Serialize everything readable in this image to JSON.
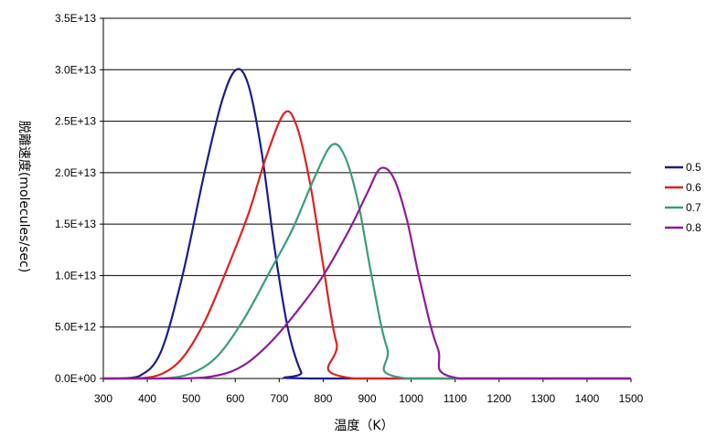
{
  "chart_data": {
    "type": "line",
    "title": "",
    "xlabel": "温度（K）",
    "ylabel": "脱離速度(molecules/sec)",
    "xlim": [
      300,
      1500
    ],
    "ylim": [
      0,
      35000000000000.0
    ],
    "x_ticks": [
      300,
      400,
      500,
      600,
      700,
      800,
      900,
      1000,
      1100,
      1200,
      1300,
      1400,
      1500
    ],
    "x_tick_labels": [
      "300",
      "400",
      "500",
      "600",
      "700",
      "800",
      "900",
      "1000",
      "1100",
      "1200",
      "1300",
      "1400",
      "1500"
    ],
    "y_ticks": [
      0,
      5000000000000.0,
      10000000000000.0,
      15000000000000.0,
      20000000000000.0,
      25000000000000.0,
      30000000000000.0,
      35000000000000.0
    ],
    "y_tick_labels": [
      "0.0E+00",
      "5.0E+12",
      "1.0E+13",
      "1.5E+13",
      "2.0E+13",
      "2.5E+13",
      "3.0E+13",
      "3.5E+13"
    ],
    "grid": "horizontal",
    "legend_position": "right",
    "series": [
      {
        "name": "0.5",
        "color": "#1c1c8c",
        "peak_x": 602,
        "peak_y": 30000000000000.0,
        "x": [
          330,
          380,
          430,
          480,
          530,
          570,
          602,
          630,
          660,
          690,
          720,
          750,
          770
        ],
        "y": [
          0,
          200000000000.0,
          2500000000000.0,
          10000000000000.0,
          20000000000000.0,
          27000000000000.0,
          30000000000000.0,
          28500000000000.0,
          22000000000000.0,
          12500000000000.0,
          4800000000000.0,
          600000000000.0,
          0
        ]
      },
      {
        "name": "0.6",
        "color": "#e02020",
        "peak_x": 712,
        "peak_y": 25800000000000.0,
        "x": [
          370,
          430,
          480,
          530,
          580,
          630,
          670,
          712,
          740,
          770,
          800,
          830,
          870
        ],
        "y": [
          0,
          400000000000.0,
          2000000000000.0,
          5500000000000.0,
          10500000000000.0,
          16000000000000.0,
          21500000000000.0,
          25800000000000.0,
          24500000000000.0,
          19000000000000.0,
          11000000000000.0,
          3500000000000.0,
          0
        ]
      },
      {
        "name": "0.7",
        "color": "#3c9c78",
        "peak_x": 820,
        "peak_y": 22700000000000.0,
        "x": [
          430,
          500,
          560,
          620,
          680,
          730,
          780,
          820,
          850,
          880,
          910,
          945,
          990
        ],
        "y": [
          0,
          500000000000.0,
          2200000000000.0,
          5800000000000.0,
          10500000000000.0,
          14500000000000.0,
          19500000000000.0,
          22700000000000.0,
          21500000000000.0,
          17000000000000.0,
          10000000000000.0,
          3000000000000.0,
          0
        ]
      },
      {
        "name": "0.8",
        "color": "#8c1c96",
        "peak_x": 930,
        "peak_y": 20400000000000.0,
        "x": [
          480,
          560,
          620,
          680,
          740,
          800,
          860,
          900,
          930,
          960,
          990,
          1020,
          1060,
          1110
        ],
        "y": [
          0,
          300000000000.0,
          1300000000000.0,
          3500000000000.0,
          6500000000000.0,
          10000000000000.0,
          14500000000000.0,
          18000000000000.0,
          20400000000000.0,
          19500000000000.0,
          15500000000000.0,
          9500000000000.0,
          3000000000000.0,
          0
        ]
      }
    ]
  }
}
